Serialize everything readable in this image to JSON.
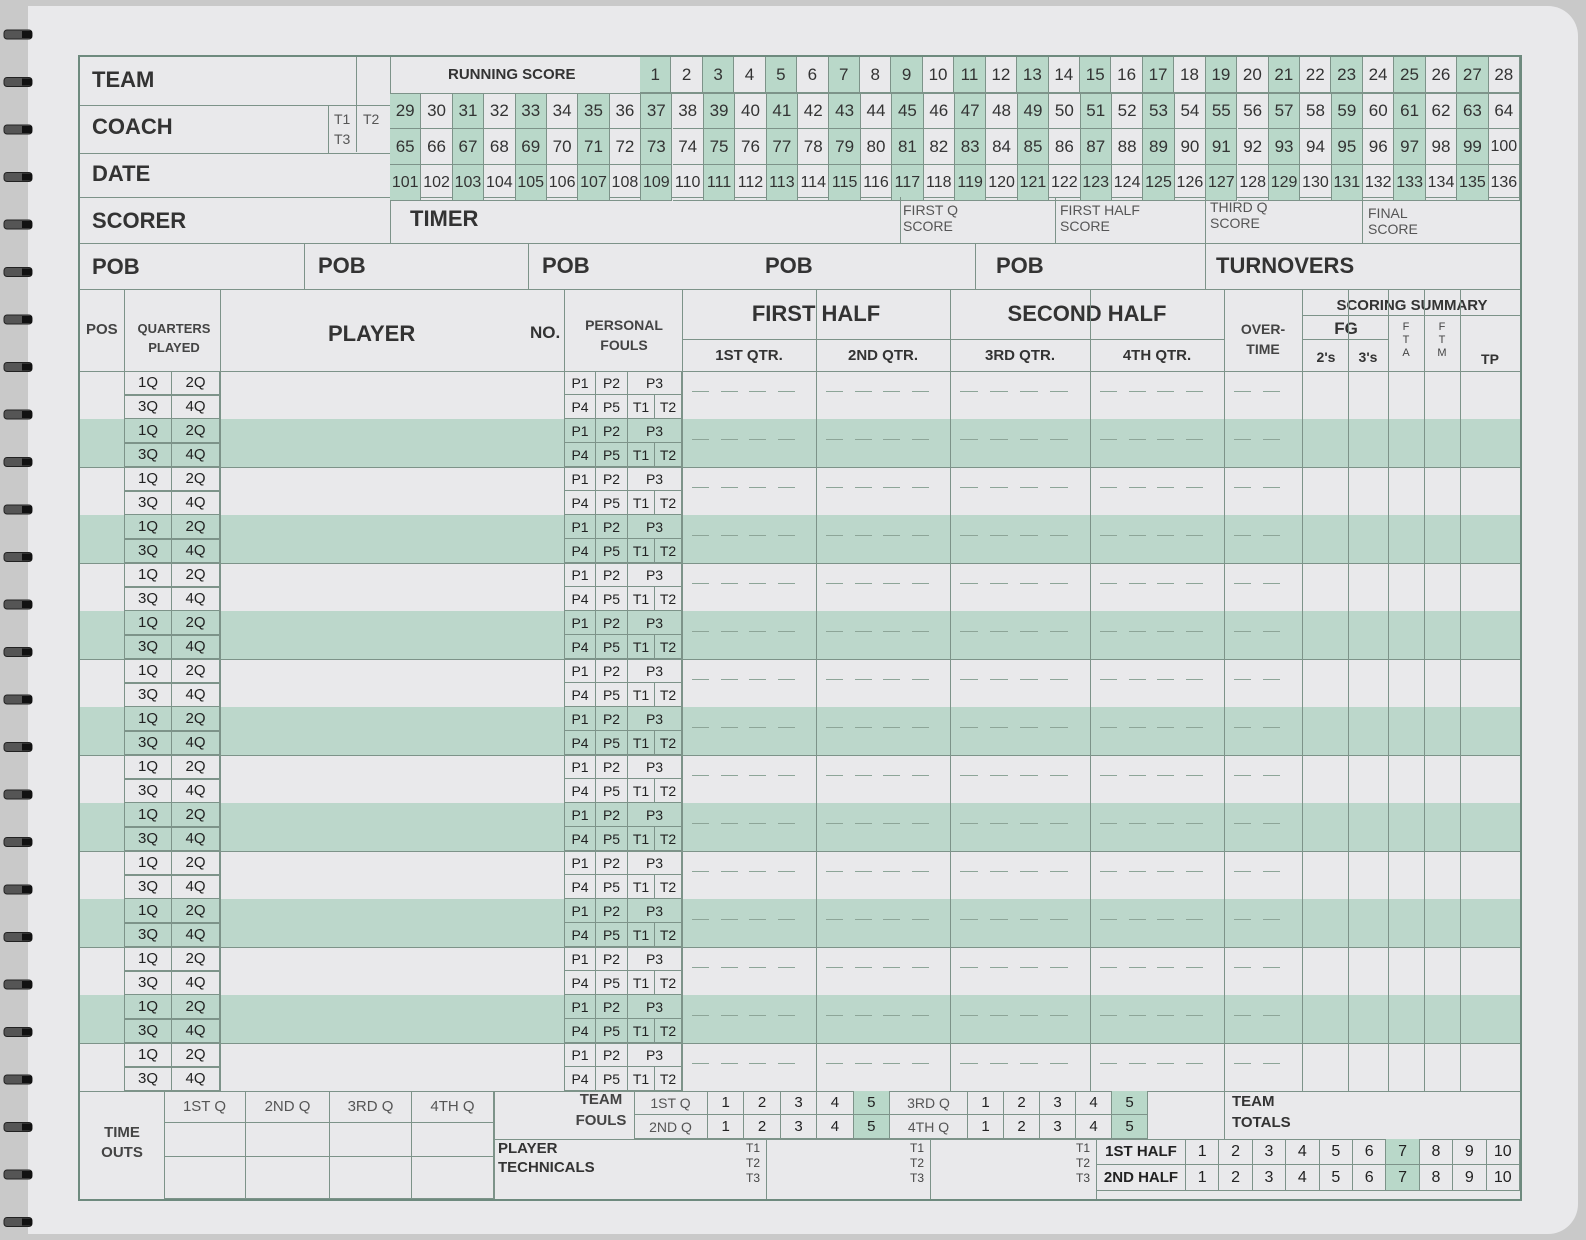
{
  "header": {
    "team": "TEAM",
    "coach": "COACH",
    "date": "DATE",
    "scorer": "SCORER",
    "timer": "TIMER",
    "running_score": "RUNNING SCORE",
    "t1": "T1",
    "t2": "T2",
    "t3": "T3",
    "first_q_score": [
      "FIRST Q",
      "SCORE"
    ],
    "first_half_score": [
      "FIRST HALF",
      "SCORE"
    ],
    "third_q_score": [
      "THIRD Q",
      "SCORE"
    ],
    "final_score": [
      "FINAL",
      "SCORE"
    ],
    "pob": "POB",
    "turnovers": "TURNOVERS"
  },
  "running_score_rows": [
    {
      "start": 1,
      "end": 28
    },
    {
      "start": 29,
      "end": 64
    },
    {
      "start": 65,
      "end": 100
    },
    {
      "start": 101,
      "end": 136
    }
  ],
  "columns": {
    "pos": "POS",
    "quarters_played": [
      "QUARTERS",
      "PLAYED"
    ],
    "player": "PLAYER",
    "no": "NO.",
    "personal_fouls": [
      "PERSONAL",
      "FOULS"
    ],
    "first_half": "FIRST HALF",
    "second_half": "SECOND HALF",
    "q1": "1ST QTR.",
    "q2": "2ND QTR.",
    "q3": "3RD QTR.",
    "q4": "4TH QTR.",
    "overtime": [
      "OVER-",
      "TIME"
    ],
    "scoring_summary": "SCORING SUMMARY",
    "fg": "FG",
    "twos": "2's",
    "threes": "3's",
    "fta": [
      "F",
      "T",
      "A"
    ],
    "ftm": [
      "F",
      "T",
      "M"
    ],
    "tp": "TP"
  },
  "player_row": {
    "q_top": [
      "1Q",
      "2Q"
    ],
    "q_bottom": [
      "3Q",
      "4Q"
    ],
    "fouls_top": [
      "P1",
      "P2",
      "P3"
    ],
    "fouls_bottom": [
      "P4",
      "P5",
      "T1",
      "T2"
    ]
  },
  "player_row_count": 15,
  "footer": {
    "time_outs": [
      "TIME",
      "OUTS"
    ],
    "to_quarters": [
      "1ST Q",
      "2ND Q",
      "3RD Q",
      "4TH Q"
    ],
    "team_fouls": [
      "TEAM",
      "FOULS"
    ],
    "tf_1st": "1ST Q",
    "tf_2nd": "2ND Q",
    "tf_3rd": "3RD Q",
    "tf_4th": "4TH Q",
    "foul_counts": [
      "1",
      "2",
      "3",
      "4",
      "5"
    ],
    "team_totals": [
      "TEAM",
      "TOTALS"
    ],
    "player_technicals": [
      "PLAYER",
      "TECHNICALS"
    ],
    "tech_labels": [
      "T1",
      "T2",
      "T3"
    ],
    "first_half": "1ST HALF",
    "second_half": "2ND HALF",
    "half_counts": [
      "1",
      "2",
      "3",
      "4",
      "5",
      "6",
      "7",
      "8",
      "9",
      "10"
    ]
  },
  "colors": {
    "accent": "#b9d8c9",
    "line": "#7d9389",
    "paper": "#e9e9eb"
  }
}
